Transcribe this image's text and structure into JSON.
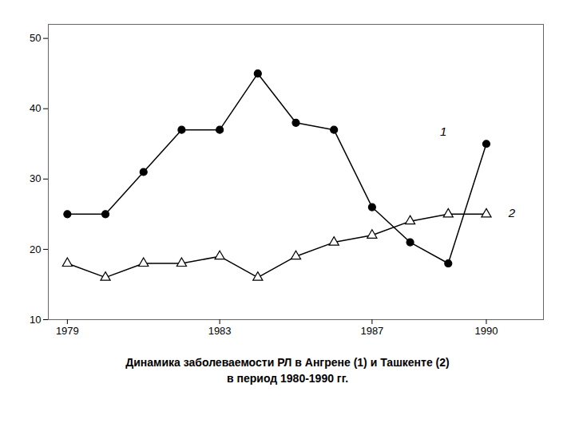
{
  "chart_data": {
    "type": "line",
    "title": "Динамика заболеваемости РЛ в Ангрене (1) и Ташкенте (2)",
    "subtitle": "в период 1980-1990 гг.",
    "x": [
      1979,
      1980,
      1981,
      1982,
      1983,
      1984,
      1985,
      1986,
      1987,
      1988,
      1989,
      1990
    ],
    "series": [
      {
        "color": "#000000",
        "marker": "circle",
        "values": [
          25,
          25,
          31,
          37,
          37,
          45,
          38,
          37,
          26,
          21,
          18,
          35
        ]
      },
      {
        "color": "#000000",
        "marker": "open_triangle",
        "values": [
          18,
          16,
          18,
          18,
          19,
          16,
          19,
          21,
          22,
          24,
          25,
          25
        ]
      }
    ],
    "annotations": [
      {
        "text": "1",
        "x": 1988.7,
        "y": 36.0
      },
      {
        "text": "2",
        "x": 1990.5,
        "y": 24.5
      }
    ],
    "xlim": [
      1978.5,
      1991.5
    ],
    "xticks": [
      1979,
      1983,
      1987,
      1990
    ],
    "ylim": [
      10,
      52
    ],
    "yticks": [
      10,
      20,
      30,
      40,
      50
    ],
    "grid": false
  }
}
